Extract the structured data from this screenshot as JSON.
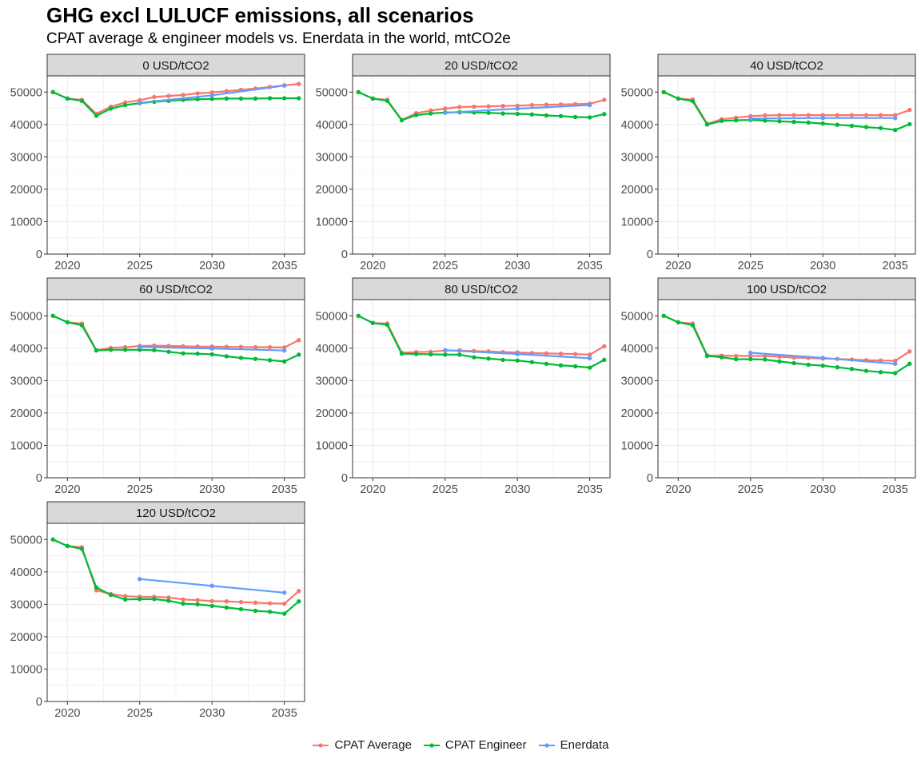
{
  "title": "GHG excl LULUCF emissions, all scenarios",
  "subtitle": "CPAT average & engineer models vs. Enerdata in the world, mtCO2e",
  "colors": {
    "CPAT Average": "#F8766D",
    "CPAT Engineer": "#00BA38",
    "Enerdata": "#619CFF",
    "strip_bg": "#D9D9D9",
    "grid": "#EBEBEB",
    "axis_text": "#4D4D4D"
  },
  "chart_data": {
    "type": "line",
    "x_ticks": [
      "2020",
      "2025",
      "2030",
      "2035"
    ],
    "y_ticks": [
      "0",
      "10000",
      "20000",
      "30000",
      "40000",
      "50000"
    ],
    "xlim": [
      2018.6,
      2036.4
    ],
    "ylim": [
      0,
      55000
    ],
    "grid": true,
    "legend": {
      "position": "bottom",
      "entries": [
        "CPAT Average",
        "CPAT Engineer",
        "Enerdata"
      ]
    },
    "panels": [
      {
        "label": "0 USD/tCO2",
        "series": [
          {
            "name": "CPAT Average",
            "x": [
              2019,
              2020,
              2021,
              2022,
              2023,
              2024,
              2025,
              2026,
              2027,
              2028,
              2029,
              2030,
              2031,
              2032,
              2033,
              2034,
              2035,
              2036
            ],
            "values": [
              50000,
              48000,
              47600,
              43300,
              45500,
              46800,
              47500,
              48500,
              48800,
              49100,
              49600,
              49900,
              50300,
              50700,
              51100,
              51600,
              52100,
              52500
            ]
          },
          {
            "name": "CPAT Engineer",
            "x": [
              2019,
              2020,
              2021,
              2022,
              2023,
              2024,
              2025,
              2026,
              2027,
              2028,
              2029,
              2030,
              2031,
              2032,
              2033,
              2034,
              2035,
              2036
            ],
            "values": [
              50000,
              48000,
              47300,
              42700,
              44900,
              46000,
              46600,
              47000,
              47300,
              47600,
              47800,
              47900,
              48000,
              48000,
              48000,
              48100,
              48100,
              48100
            ]
          },
          {
            "name": "Enerdata",
            "x": [
              2025,
              2030,
              2035
            ],
            "values": [
              46700,
              49000,
              52000
            ]
          }
        ]
      },
      {
        "label": "20 USD/tCO2",
        "series": [
          {
            "name": "CPAT Average",
            "x": [
              2019,
              2020,
              2021,
              2022,
              2023,
              2024,
              2025,
              2026,
              2027,
              2028,
              2029,
              2030,
              2031,
              2032,
              2033,
              2034,
              2035,
              2036
            ],
            "values": [
              50000,
              48000,
              47600,
              41400,
              43500,
              44300,
              44900,
              45400,
              45500,
              45600,
              45700,
              45800,
              46000,
              46100,
              46200,
              46300,
              46400,
              47600
            ]
          },
          {
            "name": "CPAT Engineer",
            "x": [
              2019,
              2020,
              2021,
              2022,
              2023,
              2024,
              2025,
              2026,
              2027,
              2028,
              2029,
              2030,
              2031,
              2032,
              2033,
              2034,
              2035,
              2036
            ],
            "values": [
              50000,
              48000,
              47300,
              41300,
              42900,
              43400,
              43700,
              43800,
              43700,
              43600,
              43400,
              43300,
              43100,
              42800,
              42600,
              42300,
              42200,
              43200
            ]
          },
          {
            "name": "Enerdata",
            "x": [
              2025,
              2030,
              2035
            ],
            "values": [
              43600,
              44900,
              46000
            ]
          }
        ]
      },
      {
        "label": "40 USD/tCO2",
        "series": [
          {
            "name": "CPAT Average",
            "x": [
              2019,
              2020,
              2021,
              2022,
              2023,
              2024,
              2025,
              2026,
              2027,
              2028,
              2029,
              2030,
              2031,
              2032,
              2033,
              2034,
              2035,
              2036
            ],
            "values": [
              50000,
              48000,
              47700,
              40200,
              41600,
              42100,
              42600,
              42800,
              42900,
              42900,
              42900,
              42900,
              42900,
              42900,
              42900,
              42900,
              42900,
              44500
            ]
          },
          {
            "name": "CPAT Engineer",
            "x": [
              2019,
              2020,
              2021,
              2022,
              2023,
              2024,
              2025,
              2026,
              2027,
              2028,
              2029,
              2030,
              2031,
              2032,
              2033,
              2034,
              2035,
              2036
            ],
            "values": [
              50000,
              48000,
              47200,
              40000,
              41100,
              41300,
              41400,
              41200,
              41000,
              40800,
              40600,
              40300,
              39900,
              39600,
              39200,
              38900,
              38300,
              40100
            ]
          },
          {
            "name": "Enerdata",
            "x": [
              2025,
              2030,
              2035
            ],
            "values": [
              41800,
              42000,
              42000
            ]
          }
        ]
      },
      {
        "label": "60 USD/tCO2",
        "series": [
          {
            "name": "CPAT Average",
            "x": [
              2019,
              2020,
              2021,
              2022,
              2023,
              2024,
              2025,
              2026,
              2027,
              2028,
              2029,
              2030,
              2031,
              2032,
              2033,
              2034,
              2035,
              2036
            ],
            "values": [
              50000,
              48000,
              47600,
              39400,
              40100,
              40300,
              40700,
              40800,
              40700,
              40600,
              40500,
              40500,
              40400,
              40400,
              40300,
              40300,
              40200,
              42500
            ]
          },
          {
            "name": "CPAT Engineer",
            "x": [
              2019,
              2020,
              2021,
              2022,
              2023,
              2024,
              2025,
              2026,
              2027,
              2028,
              2029,
              2030,
              2031,
              2032,
              2033,
              2034,
              2035,
              2036
            ],
            "values": [
              50000,
              48000,
              47100,
              39300,
              39500,
              39500,
              39500,
              39400,
              38900,
              38400,
              38300,
              38100,
              37500,
              37000,
              36700,
              36300,
              35900,
              38000
            ]
          },
          {
            "name": "Enerdata",
            "x": [
              2025,
              2030,
              2035
            ],
            "values": [
              40400,
              39900,
              39300
            ]
          }
        ]
      },
      {
        "label": "80 USD/tCO2",
        "series": [
          {
            "name": "CPAT Average",
            "x": [
              2019,
              2020,
              2021,
              2022,
              2023,
              2024,
              2025,
              2026,
              2027,
              2028,
              2029,
              2030,
              2031,
              2032,
              2033,
              2034,
              2035,
              2036
            ],
            "values": [
              50000,
              47800,
              47600,
              38600,
              38800,
              38900,
              39300,
              39300,
              39100,
              39000,
              38800,
              38700,
              38500,
              38400,
              38300,
              38200,
              38000,
              40600
            ]
          },
          {
            "name": "CPAT Engineer",
            "x": [
              2019,
              2020,
              2021,
              2022,
              2023,
              2024,
              2025,
              2026,
              2027,
              2028,
              2029,
              2030,
              2031,
              2032,
              2033,
              2034,
              2035,
              2036
            ],
            "values": [
              50000,
              47800,
              47200,
              38300,
              38200,
              38100,
              38000,
              38000,
              37200,
              36800,
              36400,
              36200,
              35700,
              35200,
              34700,
              34400,
              34000,
              36400
            ]
          },
          {
            "name": "Enerdata",
            "x": [
              2025,
              2030,
              2035
            ],
            "values": [
              39400,
              38200,
              36900
            ]
          }
        ]
      },
      {
        "label": "100 USD/tCO2",
        "series": [
          {
            "name": "CPAT Average",
            "x": [
              2019,
              2020,
              2021,
              2022,
              2023,
              2024,
              2025,
              2026,
              2027,
              2028,
              2029,
              2030,
              2031,
              2032,
              2033,
              2034,
              2035,
              2036
            ],
            "values": [
              50000,
              48000,
              47600,
              37800,
              37700,
              37600,
              37600,
              37600,
              37400,
              37100,
              37000,
              36800,
              36700,
              36500,
              36300,
              36200,
              36100,
              39000
            ]
          },
          {
            "name": "CPAT Engineer",
            "x": [
              2019,
              2020,
              2021,
              2022,
              2023,
              2024,
              2025,
              2026,
              2027,
              2028,
              2029,
              2030,
              2031,
              2032,
              2033,
              2034,
              2035,
              2036
            ],
            "values": [
              50000,
              48000,
              47100,
              37600,
              37200,
              36600,
              36600,
              36500,
              35900,
              35400,
              34900,
              34600,
              34100,
              33600,
              33000,
              32600,
              32300,
              35200
            ]
          },
          {
            "name": "Enerdata",
            "x": [
              2025,
              2030,
              2035
            ],
            "values": [
              38600,
              37000,
              35200
            ]
          }
        ]
      },
      {
        "label": "120 USD/tCO2",
        "series": [
          {
            "name": "CPAT Average",
            "x": [
              2019,
              2020,
              2021,
              2022,
              2023,
              2024,
              2025,
              2026,
              2027,
              2028,
              2029,
              2030,
              2031,
              2032,
              2033,
              2034,
              2035,
              2036
            ],
            "values": [
              50000,
              48000,
              47600,
              34300,
              33200,
              32500,
              32300,
              32300,
              32100,
              31500,
              31300,
              31000,
              30900,
              30700,
              30500,
              30300,
              30200,
              34100
            ]
          },
          {
            "name": "CPAT Engineer",
            "x": [
              2019,
              2020,
              2021,
              2022,
              2023,
              2024,
              2025,
              2026,
              2027,
              2028,
              2029,
              2030,
              2031,
              2032,
              2033,
              2034,
              2035,
              2036
            ],
            "values": [
              50000,
              48000,
              47100,
              35200,
              32900,
              31500,
              31600,
              31600,
              31100,
              30200,
              30000,
              29500,
              29000,
              28500,
              28000,
              27700,
              27100,
              30900
            ]
          },
          {
            "name": "Enerdata",
            "x": [
              2025,
              2030,
              2035
            ],
            "values": [
              37800,
              35700,
              33600
            ]
          }
        ]
      }
    ]
  }
}
